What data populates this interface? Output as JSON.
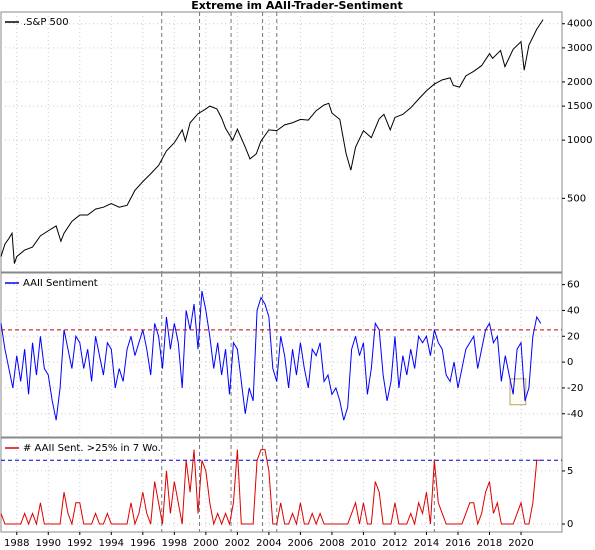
{
  "chart_data": [
    {
      "type": "line",
      "title": "Extreme im AAII-Trader-Sentiment",
      "yscale": "log",
      "legend": "upper left",
      "grid": true,
      "xlim": [
        1987,
        2022.6
      ],
      "ylim": [
        208,
        4600
      ],
      "yticks": [
        500,
        1000,
        1500,
        2000,
        3000,
        4000
      ],
      "vlines": [
        1997.2,
        1999.6,
        2001.6,
        2003.6,
        2004.5,
        2014.5
      ],
      "x": [
        1987.0,
        1987.25,
        1987.5,
        1987.7,
        1987.85,
        1988.0,
        1988.5,
        1989.0,
        1989.5,
        1990.0,
        1990.5,
        1990.8,
        1991.0,
        1991.5,
        1992.0,
        1992.5,
        1993.0,
        1993.5,
        1994.0,
        1994.5,
        1995.0,
        1995.5,
        1996.0,
        1996.5,
        1997.0,
        1997.5,
        1998.0,
        1998.5,
        1998.7,
        1999.0,
        1999.5,
        2000.0,
        2000.25,
        2000.7,
        2001.0,
        2001.25,
        2001.7,
        2002.0,
        2002.5,
        2002.8,
        2003.2,
        2003.5,
        2004.0,
        2004.5,
        2005.0,
        2005.5,
        2006.0,
        2006.5,
        2007.0,
        2007.5,
        2007.8,
        2008.0,
        2008.5,
        2008.9,
        2009.2,
        2009.5,
        2010.0,
        2010.5,
        2011.0,
        2011.3,
        2011.7,
        2012.0,
        2012.5,
        2013.0,
        2013.5,
        2014.0,
        2014.5,
        2015.0,
        2015.5,
        2015.7,
        2016.1,
        2016.5,
        2017.0,
        2017.5,
        2018.0,
        2018.2,
        2018.7,
        2018.98,
        2019.5,
        2020.0,
        2020.2,
        2020.5,
        2021.0,
        2021.4
      ],
      "series": [
        {
          "name": ".S&P 500",
          "color": "#000000",
          "values": [
            250,
            290,
            310,
            330,
            230,
            250,
            270,
            280,
            320,
            340,
            360,
            300,
            330,
            380,
            410,
            410,
            440,
            450,
            470,
            450,
            460,
            550,
            610,
            670,
            740,
            880,
            970,
            1130,
            990,
            1230,
            1370,
            1450,
            1500,
            1450,
            1300,
            1150,
            1000,
            1140,
            920,
            800,
            850,
            990,
            1130,
            1120,
            1200,
            1230,
            1280,
            1270,
            1420,
            1520,
            1550,
            1380,
            1280,
            850,
            700,
            920,
            1120,
            1030,
            1290,
            1360,
            1130,
            1310,
            1360,
            1470,
            1630,
            1800,
            1950,
            2050,
            2100,
            1920,
            1880,
            2150,
            2270,
            2430,
            2800,
            2650,
            2910,
            2400,
            2950,
            3230,
            2300,
            3100,
            3750,
            4200
          ]
        }
      ]
    },
    {
      "type": "line",
      "legend": "upper left",
      "grid": true,
      "xlim": [
        1987,
        2022.6
      ],
      "ylim": [
        -58,
        69
      ],
      "yticks": [
        -40,
        -20,
        0,
        20,
        40,
        60
      ],
      "hline": {
        "value": 25,
        "color": "#cc0000"
      },
      "highlight": {
        "x": [
          2019.3,
          2020.3
        ],
        "y": [
          -33,
          -13
        ],
        "color": "#b8a070"
      },
      "x": [
        1987.0,
        1987.25,
        1987.5,
        1987.75,
        1988.0,
        1988.25,
        1988.5,
        1988.75,
        1989.0,
        1989.25,
        1989.5,
        1989.75,
        1990.0,
        1990.25,
        1990.5,
        1990.75,
        1991.0,
        1991.25,
        1991.5,
        1991.75,
        1992.0,
        1992.25,
        1992.5,
        1992.75,
        1993.0,
        1993.25,
        1993.5,
        1993.75,
        1994.0,
        1994.25,
        1994.5,
        1994.75,
        1995.0,
        1995.25,
        1995.5,
        1995.75,
        1996.0,
        1996.25,
        1996.5,
        1996.75,
        1997.0,
        1997.25,
        1997.5,
        1997.75,
        1998.0,
        1998.25,
        1998.5,
        1998.75,
        1999.0,
        1999.25,
        1999.5,
        1999.75,
        2000.0,
        2000.25,
        2000.5,
        2000.75,
        2001.0,
        2001.25,
        2001.5,
        2001.75,
        2002.0,
        2002.25,
        2002.5,
        2002.75,
        2003.0,
        2003.25,
        2003.5,
        2003.75,
        2004.0,
        2004.25,
        2004.5,
        2004.75,
        2005.0,
        2005.25,
        2005.5,
        2005.75,
        2006.0,
        2006.25,
        2006.5,
        2006.75,
        2007.0,
        2007.25,
        2007.5,
        2007.75,
        2008.0,
        2008.25,
        2008.5,
        2008.75,
        2009.0,
        2009.25,
        2009.5,
        2009.75,
        2010.0,
        2010.25,
        2010.5,
        2010.75,
        2011.0,
        2011.25,
        2011.5,
        2011.75,
        2012.0,
        2012.25,
        2012.5,
        2012.75,
        2013.0,
        2013.25,
        2013.5,
        2013.75,
        2014.0,
        2014.25,
        2014.5,
        2014.75,
        2015.0,
        2015.25,
        2015.5,
        2015.75,
        2016.0,
        2016.25,
        2016.5,
        2016.75,
        2017.0,
        2017.25,
        2017.5,
        2017.75,
        2018.0,
        2018.25,
        2018.5,
        2018.75,
        2019.0,
        2019.25,
        2019.5,
        2019.75,
        2020.0,
        2020.25,
        2020.5,
        2020.75,
        2021.0,
        2021.25
      ],
      "series": [
        {
          "name": "AAII Sentiment",
          "color": "#0000ff",
          "values": [
            30,
            10,
            -5,
            -20,
            5,
            -15,
            10,
            -25,
            15,
            -10,
            20,
            -5,
            -10,
            -30,
            -45,
            -20,
            25,
            10,
            -5,
            20,
            15,
            -5,
            10,
            -15,
            20,
            5,
            -10,
            15,
            10,
            -20,
            -5,
            -15,
            10,
            20,
            5,
            15,
            25,
            10,
            -10,
            30,
            20,
            -5,
            35,
            10,
            30,
            15,
            -20,
            40,
            25,
            45,
            10,
            55,
            40,
            20,
            -5,
            15,
            -10,
            10,
            -25,
            15,
            10,
            -15,
            -40,
            -20,
            -30,
            40,
            50,
            45,
            35,
            -5,
            -15,
            20,
            5,
            -20,
            10,
            -10,
            15,
            -5,
            -20,
            10,
            5,
            15,
            -15,
            -10,
            -25,
            -20,
            -30,
            -45,
            -35,
            10,
            20,
            5,
            15,
            -25,
            -5,
            30,
            25,
            -10,
            -30,
            -15,
            20,
            -20,
            5,
            -10,
            10,
            -5,
            20,
            15,
            20,
            5,
            25,
            15,
            10,
            -10,
            -15,
            0,
            -20,
            -5,
            10,
            15,
            20,
            -5,
            10,
            25,
            30,
            15,
            20,
            -15,
            5,
            -10,
            -25,
            10,
            15,
            -30,
            -20,
            20,
            35,
            30
          ]
        }
      ]
    },
    {
      "type": "line",
      "legend": "upper left",
      "grid": true,
      "xlim": [
        1987,
        2022.6
      ],
      "ylim": [
        -0.75,
        8.1
      ],
      "yticks": [
        0,
        5
      ],
      "xticks": [
        1988,
        1990,
        1992,
        1994,
        1996,
        1998,
        2000,
        2002,
        2004,
        2006,
        2008,
        2010,
        2012,
        2014,
        2016,
        2018,
        2020
      ],
      "hline": {
        "value": 6,
        "color": "#0000cc"
      },
      "x": [
        1987.0,
        1987.25,
        1987.5,
        1987.75,
        1988.0,
        1988.25,
        1988.5,
        1988.75,
        1989.0,
        1989.25,
        1989.5,
        1989.75,
        1990.0,
        1990.25,
        1990.5,
        1990.75,
        1991.0,
        1991.25,
        1991.5,
        1991.75,
        1992.0,
        1992.25,
        1992.5,
        1992.75,
        1993.0,
        1993.25,
        1993.5,
        1993.75,
        1994.0,
        1994.25,
        1994.5,
        1994.75,
        1995.0,
        1995.25,
        1995.5,
        1995.75,
        1996.0,
        1996.25,
        1996.5,
        1996.75,
        1997.0,
        1997.25,
        1997.5,
        1997.75,
        1998.0,
        1998.25,
        1998.5,
        1998.75,
        1999.0,
        1999.25,
        1999.5,
        1999.75,
        2000.0,
        2000.25,
        2000.5,
        2000.75,
        2001.0,
        2001.25,
        2001.5,
        2001.75,
        2002.0,
        2002.25,
        2002.5,
        2002.75,
        2003.0,
        2003.25,
        2003.5,
        2003.75,
        2004.0,
        2004.25,
        2004.5,
        2004.75,
        2005.0,
        2005.25,
        2005.5,
        2005.75,
        2006.0,
        2006.25,
        2006.5,
        2006.75,
        2007.0,
        2007.25,
        2007.5,
        2007.75,
        2008.0,
        2008.25,
        2008.5,
        2008.75,
        2009.0,
        2009.25,
        2009.5,
        2009.75,
        2010.0,
        2010.25,
        2010.5,
        2010.75,
        2011.0,
        2011.25,
        2011.5,
        2011.75,
        2012.0,
        2012.25,
        2012.5,
        2012.75,
        2013.0,
        2013.25,
        2013.5,
        2013.75,
        2014.0,
        2014.25,
        2014.5,
        2014.75,
        2015.0,
        2015.25,
        2015.5,
        2015.75,
        2016.0,
        2016.25,
        2016.5,
        2016.75,
        2017.0,
        2017.25,
        2017.5,
        2017.75,
        2018.0,
        2018.25,
        2018.5,
        2018.75,
        2019.0,
        2019.25,
        2019.5,
        2019.75,
        2020.0,
        2020.25,
        2020.5,
        2020.75,
        2021.0,
        2021.25
      ],
      "series": [
        {
          "name": "# AAII Sent. >25% in 7 Wo.",
          "color": "#dd0000",
          "values": [
            1,
            0,
            0,
            0,
            0,
            0,
            1,
            0,
            1,
            0,
            2,
            0,
            0,
            0,
            0,
            0,
            3,
            1,
            0,
            2,
            2,
            0,
            0,
            0,
            1,
            0,
            0,
            1,
            0,
            0,
            0,
            0,
            0,
            2,
            0,
            1,
            3,
            1,
            0,
            4,
            2,
            0,
            5,
            1,
            4,
            2,
            0,
            6,
            3,
            7,
            1,
            6,
            5,
            2,
            0,
            1,
            0,
            1,
            0,
            2,
            7,
            0,
            0,
            0,
            0,
            6,
            7,
            7,
            5,
            0,
            0,
            2,
            0,
            0,
            1,
            0,
            2,
            0,
            0,
            1,
            0,
            1,
            0,
            0,
            0,
            0,
            0,
            0,
            0,
            1,
            2,
            0,
            2,
            0,
            0,
            4,
            3,
            0,
            0,
            0,
            2,
            0,
            0,
            0,
            1,
            0,
            2,
            1,
            3,
            0,
            6,
            2,
            1,
            0,
            0,
            0,
            0,
            0,
            1,
            2,
            2,
            0,
            1,
            3,
            4,
            1,
            2,
            0,
            0,
            0,
            0,
            1,
            2,
            0,
            0,
            2,
            6,
            6
          ]
        }
      ]
    }
  ]
}
